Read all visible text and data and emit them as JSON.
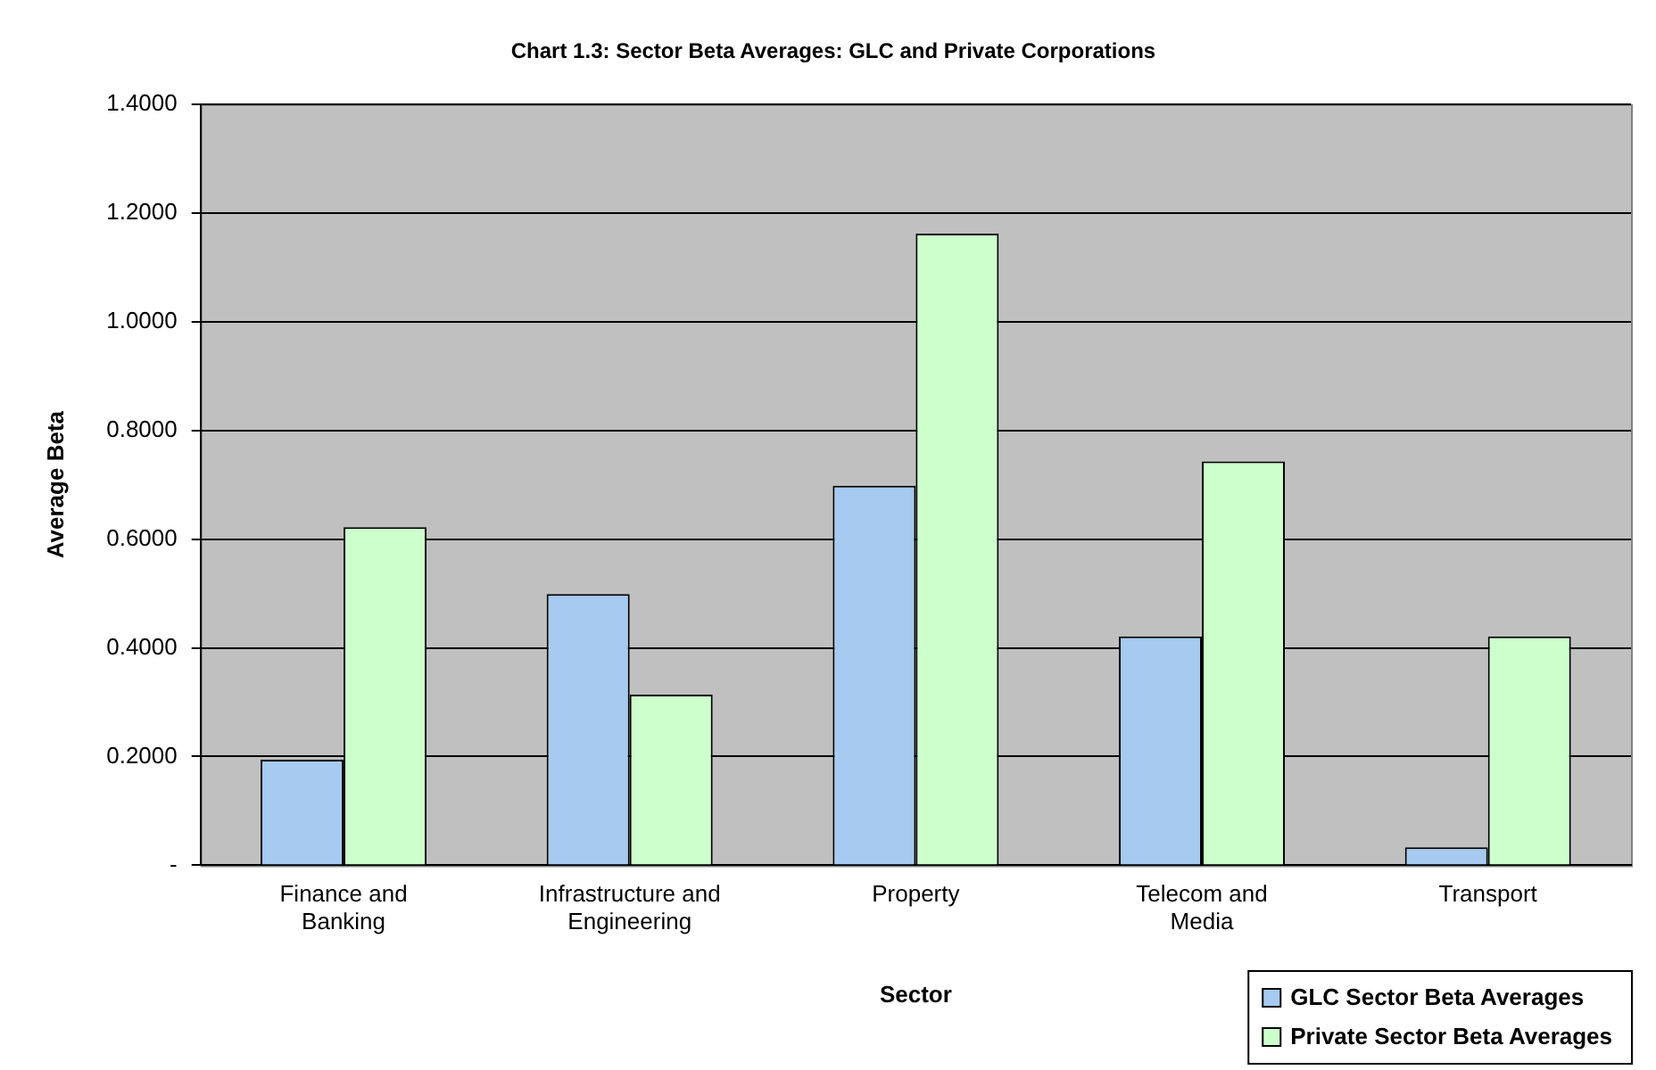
{
  "chart_data": {
    "type": "bar",
    "title": "Chart 1.3: Sector Beta Averages: GLC and Private Corporations",
    "xlabel": "Sector",
    "ylabel": "Average Beta",
    "categories": [
      "Finance and Banking",
      "Infrastructure and Engineering",
      "Property",
      "Telecom and Media",
      "Transport"
    ],
    "series": [
      {
        "name": "GLC Sector Beta Averages",
        "color": "#a6caf0",
        "values": [
          0.194,
          0.499,
          0.698,
          0.421,
          0.033
        ]
      },
      {
        "name": "Private Sector Beta Averages",
        "color": "#ccffcc",
        "values": [
          0.622,
          0.314,
          1.162,
          0.743,
          0.421
        ]
      }
    ],
    "ylim": [
      0,
      1.4
    ],
    "yticks": [
      {
        "value": 0,
        "label": "-"
      },
      {
        "value": 0.2,
        "label": "0.2000"
      },
      {
        "value": 0.4,
        "label": "0.4000"
      },
      {
        "value": 0.6,
        "label": "0.6000"
      },
      {
        "value": 0.8,
        "label": "0.8000"
      },
      {
        "value": 1,
        "label": "1.0000"
      },
      {
        "value": 1.2,
        "label": "1.2000"
      },
      {
        "value": 1.4,
        "label": "1.4000"
      }
    ],
    "grid": "y",
    "legend": "bottom right"
  }
}
